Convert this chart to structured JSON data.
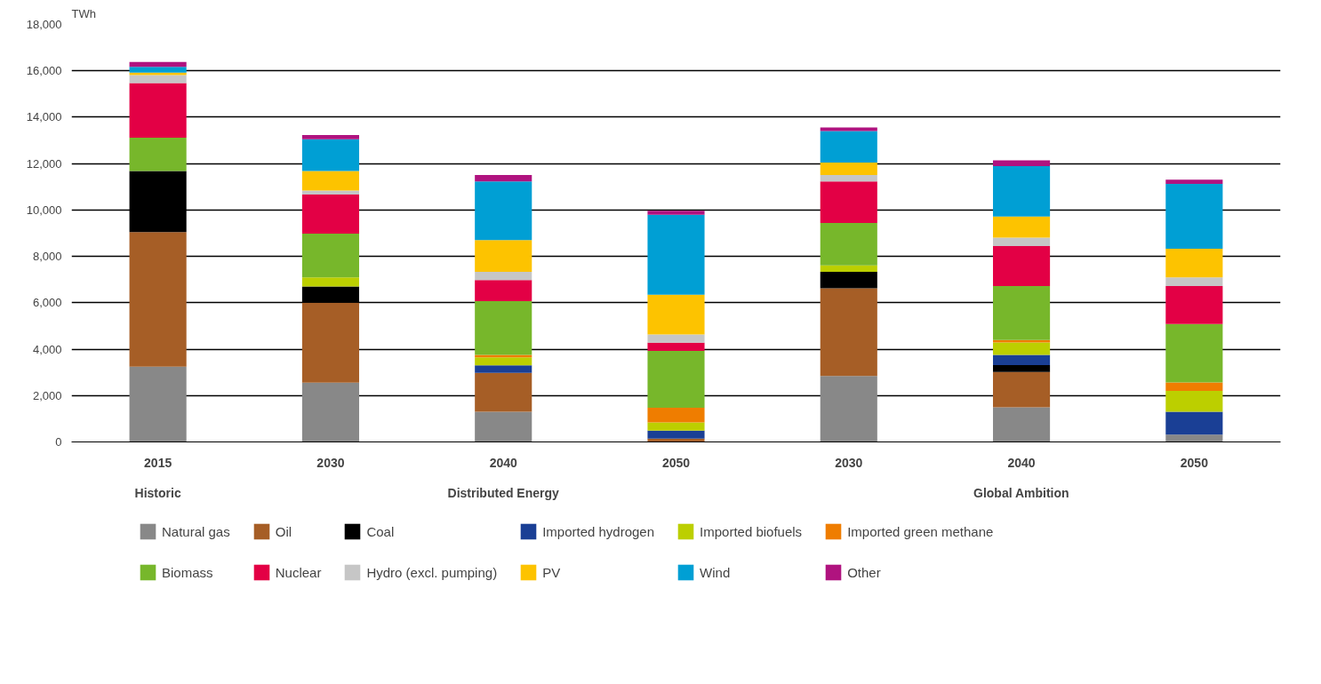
{
  "chart_data": {
    "type": "bar",
    "stacked": true,
    "ylabel": "TWh",
    "categories": [
      "2015",
      "2030",
      "2040",
      "2050",
      "2030",
      "2040",
      "2050"
    ],
    "annotations": [
      "Historic",
      "Distributed Energy",
      "Global Ambition"
    ],
    "series": [
      {
        "name": "Natural gas",
        "color": "#888888",
        "values": [
          3250,
          2560,
          1300,
          0,
          2840,
          1490,
          320
        ]
      },
      {
        "name": "Oil",
        "color": "#a65e26",
        "values": [
          5800,
          3440,
          1680,
          140,
          3790,
          1530,
          0
        ]
      },
      {
        "name": "Coal",
        "color": "#000000",
        "values": [
          2630,
          700,
          0,
          0,
          700,
          290,
          0
        ]
      },
      {
        "name": "Imported hydrogen",
        "color": "#1a3f95",
        "values": [
          0,
          0,
          320,
          350,
          0,
          440,
          980
        ]
      },
      {
        "name": "Imported biofuels",
        "color": "#bccf00",
        "values": [
          0,
          390,
          350,
          350,
          280,
          540,
          900
        ]
      },
      {
        "name": "Imported green methane",
        "color": "#ef7d00",
        "values": [
          0,
          0,
          100,
          630,
          0,
          100,
          370
        ]
      },
      {
        "name": "Biomass",
        "color": "#77b72b",
        "values": [
          1440,
          1890,
          2320,
          2460,
          1830,
          2330,
          2510
        ]
      },
      {
        "name": "Nuclear",
        "color": "#e30045",
        "values": [
          2350,
          1690,
          910,
          350,
          1790,
          1720,
          1640
        ]
      },
      {
        "name": "Hydro (excl. pumping)",
        "color": "#c6c6c6",
        "values": [
          350,
          170,
          350,
          350,
          280,
          370,
          370
        ]
      },
      {
        "name": "PV",
        "color": "#fdc300",
        "values": [
          100,
          840,
          1370,
          1720,
          530,
          910,
          1240
        ]
      },
      {
        "name": "Wind",
        "color": "#009fd4",
        "values": [
          250,
          1370,
          2530,
          3440,
          1360,
          2170,
          2800
        ]
      },
      {
        "name": "Other",
        "color": "#b0137f",
        "values": [
          210,
          180,
          280,
          180,
          160,
          250,
          180
        ]
      }
    ],
    "ylim": [
      0,
      18000
    ],
    "yticks": [
      0,
      {
        "value": 2000,
        "label": "2,000"
      },
      {
        "value": 4000,
        "label": "4,000"
      },
      {
        "value": 6000,
        "label": "6,000"
      },
      {
        "value": 8000,
        "label": "8,000"
      },
      {
        "value": 10000,
        "label": "10,000"
      },
      {
        "value": 12000,
        "label": "12,000"
      },
      {
        "value": 14000,
        "label": "14,000"
      },
      {
        "value": 16000,
        "label": "16,000"
      },
      {
        "value": 18000,
        "label": "18,000"
      }
    ],
    "grid": "y",
    "legend": "bottom"
  }
}
